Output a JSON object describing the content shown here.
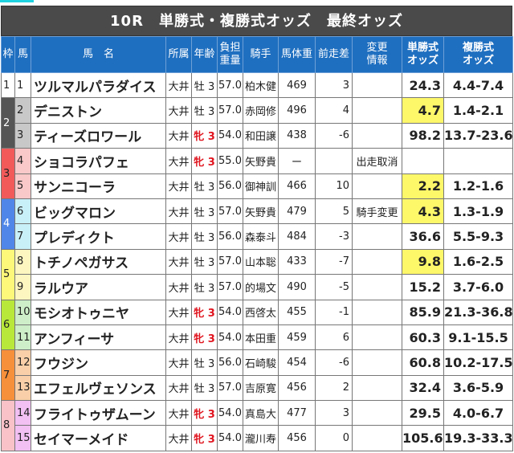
{
  "title": "10R　単勝式・複勝式オッズ　最終オッズ",
  "headers": {
    "waku": "枠",
    "uma": "馬",
    "name": "馬　名",
    "affil": "所属",
    "age": "年齢",
    "weight_a": "負担",
    "weight_b": "重量",
    "jockey": "騎手",
    "body": "馬体重",
    "diff": "前走差",
    "change_a": "変更",
    "change_b": "情報",
    "win_a": "単勝式",
    "win_b": "オッズ",
    "place_a": "複勝式",
    "place_b": "オッズ"
  },
  "frames": [
    {
      "n": "1",
      "bg": "#ffffff",
      "fg": "#222222",
      "numbg": "#ffffff"
    },
    {
      "n": "2",
      "bg": "#555555",
      "fg": "#ffffff",
      "numbg": "#c8c8c8"
    },
    {
      "n": "3",
      "bg": "#f25a5a",
      "fg": "#222222",
      "numbg": "#f9c8c8"
    },
    {
      "n": "4",
      "bg": "#4f86e8",
      "fg": "#ffffff",
      "numbg": "#c8f0f8"
    },
    {
      "n": "5",
      "bg": "#fdf77a",
      "fg": "#222222",
      "numbg": "#fdf6c0"
    },
    {
      "n": "6",
      "bg": "#b8e83a",
      "fg": "#222222",
      "numbg": "#cdeec8"
    },
    {
      "n": "7",
      "bg": "#f7903a",
      "fg": "#222222",
      "numbg": "#f8cfa8"
    },
    {
      "n": "8",
      "bg": "#f9c2c8",
      "fg": "#222222",
      "numbg": "#f2c0f2"
    }
  ],
  "highlight_color": "#fdf76a",
  "rows": [
    {
      "frame": 1,
      "num": "1",
      "name": "ツルマルパラダイス",
      "affil": "大井",
      "sex": "牡",
      "age": "3",
      "female": false,
      "wt": "57.0",
      "jockey": "柏木健",
      "body": "469",
      "diff": "3",
      "change": "",
      "win": "24.3",
      "place": "4.4-7.4",
      "hl": false
    },
    {
      "frame": 2,
      "num": "2",
      "name": "デニストン",
      "affil": "大井",
      "sex": "牡",
      "age": "3",
      "female": false,
      "wt": "57.0",
      "jockey": "赤岡修",
      "body": "496",
      "diff": "4",
      "change": "",
      "win": "4.7",
      "place": "1.4-2.1",
      "hl": true
    },
    {
      "frame": 2,
      "num": "3",
      "name": "ティーズロワール",
      "affil": "大井",
      "sex": "牝",
      "age": "3",
      "female": true,
      "wt": "54.0",
      "jockey": "和田譲",
      "body": "438",
      "diff": "-6",
      "change": "",
      "win": "98.2",
      "place": "13.7-23.6",
      "hl": false
    },
    {
      "frame": 3,
      "num": "4",
      "name": "ショコラパフェ",
      "affil": "大井",
      "sex": "牝",
      "age": "3",
      "female": true,
      "wt": "55.0",
      "jockey": "矢野貴",
      "body": "ー",
      "diff": "",
      "change": "出走取消",
      "win": "",
      "place": "",
      "hl": false
    },
    {
      "frame": 3,
      "num": "5",
      "name": "サンニコーラ",
      "affil": "大井",
      "sex": "牡",
      "age": "3",
      "female": false,
      "wt": "56.0",
      "jockey": "御神訓",
      "body": "466",
      "diff": "10",
      "change": "",
      "win": "2.2",
      "place": "1.2-1.6",
      "hl": true
    },
    {
      "frame": 4,
      "num": "6",
      "name": "ビッグマロン",
      "affil": "大井",
      "sex": "牡",
      "age": "3",
      "female": false,
      "wt": "57.0",
      "jockey": "矢野貴",
      "body": "479",
      "diff": "5",
      "change": "騎手変更",
      "win": "4.3",
      "place": "1.3-1.9",
      "hl": true
    },
    {
      "frame": 4,
      "num": "7",
      "name": "プレディクト",
      "affil": "大井",
      "sex": "牡",
      "age": "3",
      "female": false,
      "wt": "56.0",
      "jockey": "森泰斗",
      "body": "484",
      "diff": "-3",
      "change": "",
      "win": "36.6",
      "place": "5.5-9.3",
      "hl": false
    },
    {
      "frame": 5,
      "num": "8",
      "name": "トチノペガサス",
      "affil": "大井",
      "sex": "牡",
      "age": "3",
      "female": false,
      "wt": "57.0",
      "jockey": "山本聡",
      "body": "433",
      "diff": "-7",
      "change": "",
      "win": "9.8",
      "place": "1.6-2.5",
      "hl": true
    },
    {
      "frame": 5,
      "num": "9",
      "name": "ラルウア",
      "affil": "大井",
      "sex": "牡",
      "age": "3",
      "female": false,
      "wt": "57.0",
      "jockey": "的場文",
      "body": "490",
      "diff": "-5",
      "change": "",
      "win": "15.2",
      "place": "3.7-6.0",
      "hl": false
    },
    {
      "frame": 6,
      "num": "10",
      "name": "モシオトゥニヤ",
      "affil": "大井",
      "sex": "牝",
      "age": "3",
      "female": true,
      "wt": "54.0",
      "jockey": "西啓太",
      "body": "455",
      "diff": "-1",
      "change": "",
      "win": "85.9",
      "place": "21.3-36.8",
      "hl": false
    },
    {
      "frame": 6,
      "num": "11",
      "name": "アンフィーサ",
      "affil": "大井",
      "sex": "牝",
      "age": "3",
      "female": true,
      "wt": "54.0",
      "jockey": "本田重",
      "body": "459",
      "diff": "6",
      "change": "",
      "win": "60.3",
      "place": "9.1-15.5",
      "hl": false
    },
    {
      "frame": 7,
      "num": "12",
      "name": "フウジン",
      "affil": "大井",
      "sex": "牡",
      "age": "3",
      "female": false,
      "wt": "56.0",
      "jockey": "石崎駿",
      "body": "454",
      "diff": "-6",
      "change": "",
      "win": "60.8",
      "place": "10.2-17.5",
      "hl": false
    },
    {
      "frame": 7,
      "num": "13",
      "name": "エフェルヴェソンス",
      "affil": "大井",
      "sex": "牡",
      "age": "3",
      "female": false,
      "wt": "57.0",
      "jockey": "吉原寛",
      "body": "456",
      "diff": "2",
      "change": "",
      "win": "32.4",
      "place": "3.6-5.9",
      "hl": false
    },
    {
      "frame": 8,
      "num": "14",
      "name": "フライトゥザムーン",
      "affil": "大井",
      "sex": "牝",
      "age": "3",
      "female": true,
      "wt": "54.0",
      "jockey": "真島大",
      "body": "477",
      "diff": "3",
      "change": "",
      "win": "29.5",
      "place": "4.0-6.7",
      "hl": false
    },
    {
      "frame": 8,
      "num": "15",
      "name": "セイマーメイド",
      "affil": "大井",
      "sex": "牝",
      "age": "3",
      "female": true,
      "wt": "54.0",
      "jockey": "瀧川寿",
      "body": "456",
      "diff": "0",
      "change": "",
      "win": "105.6",
      "place": "19.3-33.3",
      "hl": false
    }
  ]
}
